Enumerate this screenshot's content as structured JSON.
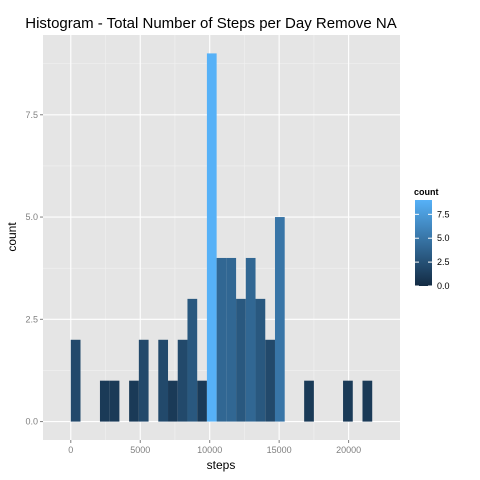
{
  "chart_data": {
    "type": "bar",
    "title": "Histogram - Total Number of Steps per Day Remove NA",
    "xlabel": "steps",
    "ylabel": "count",
    "x_ticks": [
      0,
      5000,
      10000,
      15000,
      20000
    ],
    "x_tick_labels": [
      "0",
      "5000",
      "10000",
      "15000",
      "20000"
    ],
    "y_ticks": [
      0,
      2.5,
      5,
      7.5
    ],
    "y_tick_labels": [
      "0.0",
      "2.5",
      "5.0",
      "7.5"
    ],
    "xlim": [
      -2000,
      23700
    ],
    "ylim": [
      -0.45,
      9.45
    ],
    "binwidth": 700,
    "grid": true,
    "bins": [
      {
        "x": 350,
        "count": 2
      },
      {
        "x": 2450,
        "count": 1
      },
      {
        "x": 3150,
        "count": 1
      },
      {
        "x": 4550,
        "count": 1
      },
      {
        "x": 5250,
        "count": 2
      },
      {
        "x": 6650,
        "count": 2
      },
      {
        "x": 7350,
        "count": 1
      },
      {
        "x": 8050,
        "count": 2
      },
      {
        "x": 8750,
        "count": 3
      },
      {
        "x": 9450,
        "count": 1
      },
      {
        "x": 10150,
        "count": 9
      },
      {
        "x": 10850,
        "count": 4
      },
      {
        "x": 11550,
        "count": 4
      },
      {
        "x": 12250,
        "count": 3
      },
      {
        "x": 12950,
        "count": 4
      },
      {
        "x": 13650,
        "count": 3
      },
      {
        "x": 14350,
        "count": 2
      },
      {
        "x": 15050,
        "count": 5
      },
      {
        "x": 17150,
        "count": 1
      },
      {
        "x": 19950,
        "count": 1
      },
      {
        "x": 21350,
        "count": 1
      }
    ],
    "legend": {
      "title": "count",
      "position": "right",
      "ticks": [
        0,
        2.5,
        5,
        7.5
      ],
      "tick_labels": [
        "0.0",
        "2.5",
        "5.0",
        "7.5"
      ],
      "range": [
        0,
        9
      ],
      "color_low": "#132b43",
      "color_high": "#56b1f7"
    },
    "colors": {
      "panel_background": "#e5e5e5",
      "grid_major": "#ffffff",
      "grid_minor": "#f2f2f2"
    }
  }
}
